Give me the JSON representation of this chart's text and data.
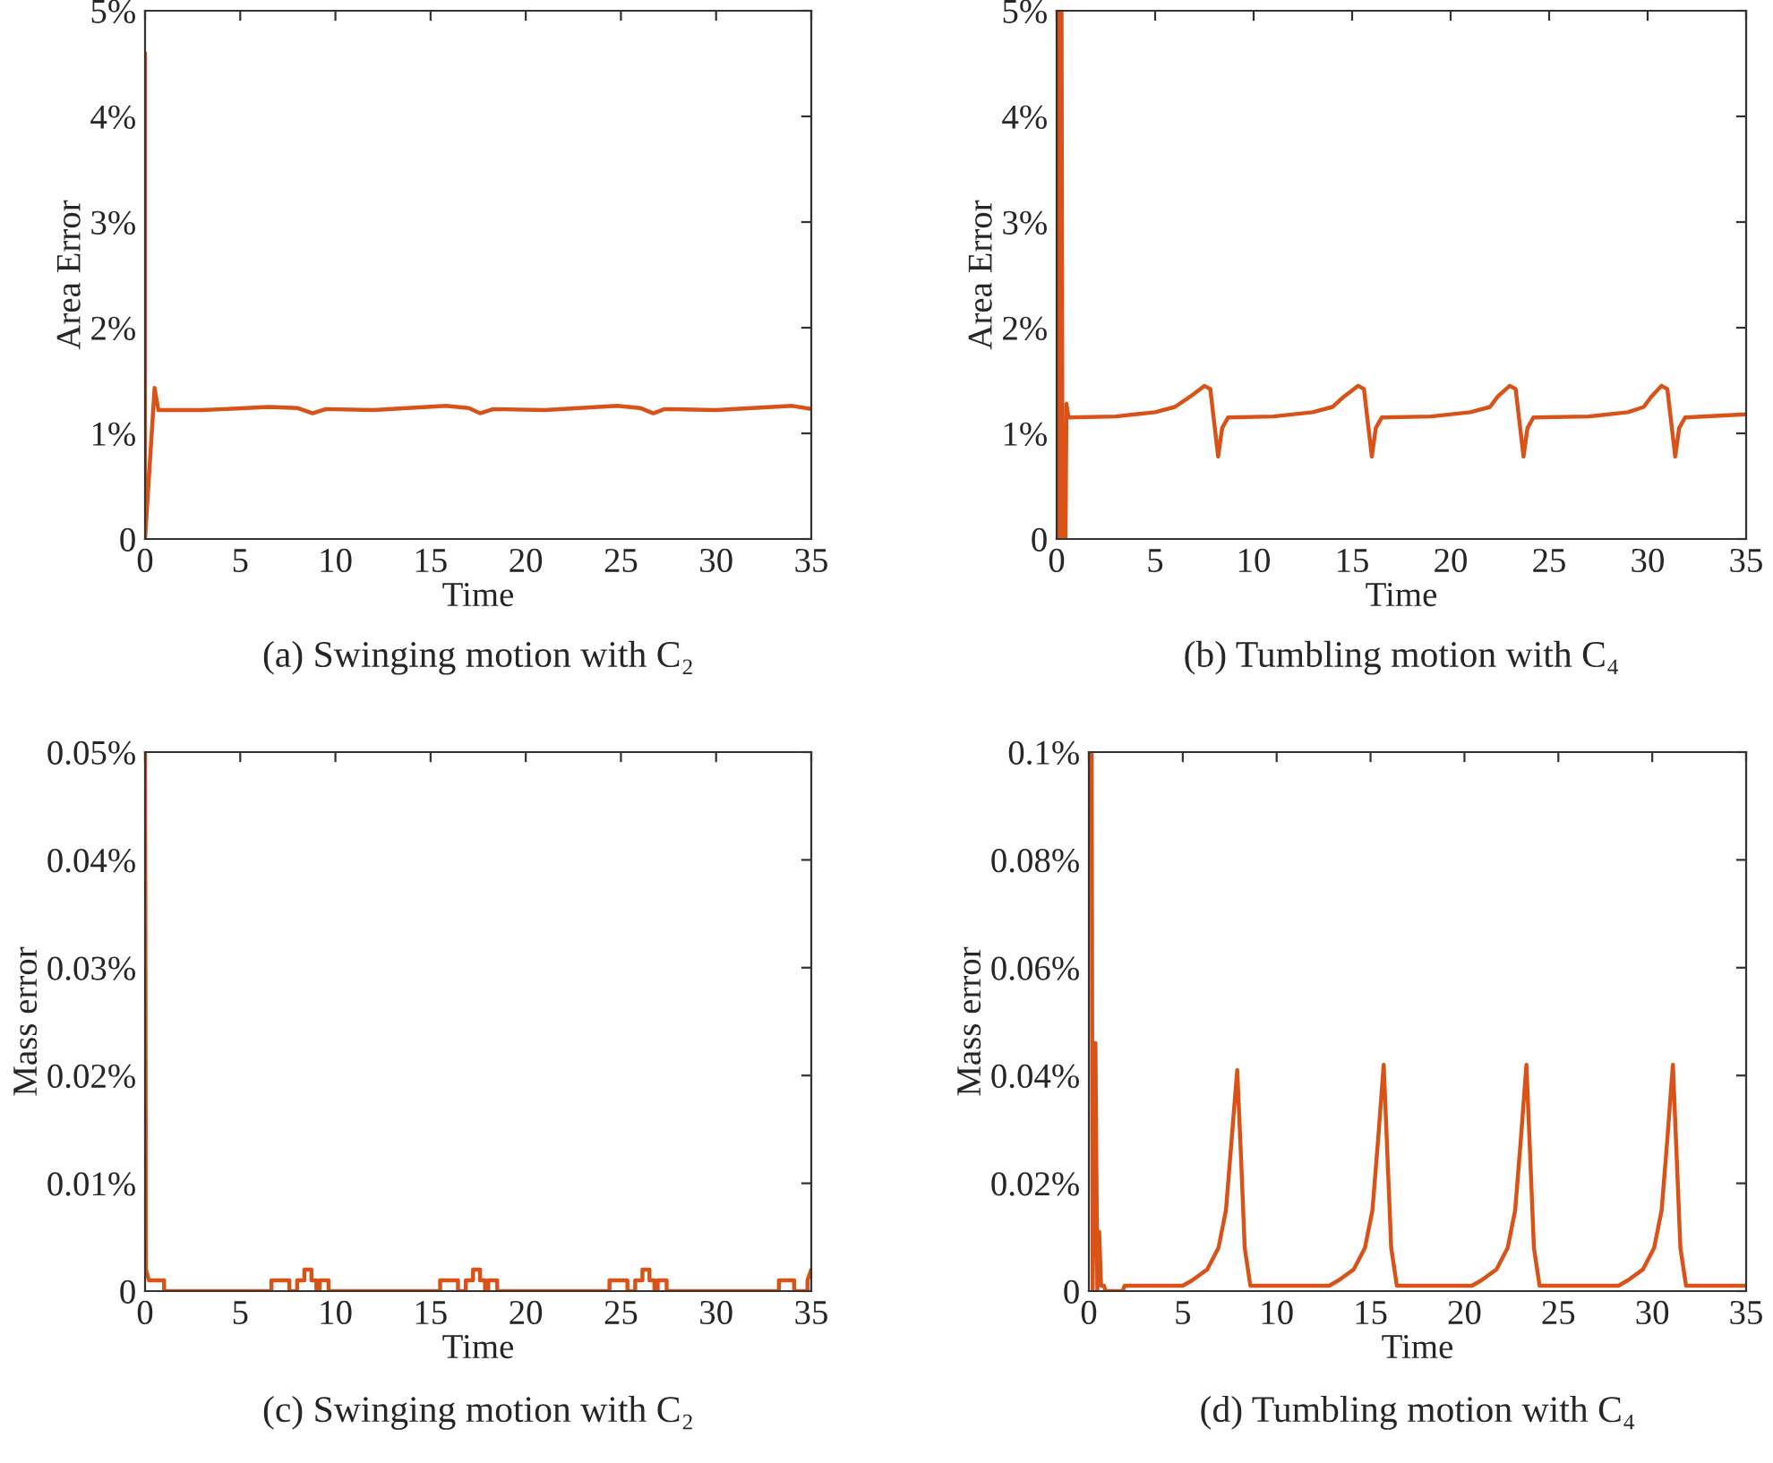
{
  "chart_data": [
    {
      "type": "line",
      "title": "(a) Swinging motion with C₂",
      "xlabel": "Time",
      "ylabel": "Area Error",
      "xlim": [
        0,
        35
      ],
      "ylim": [
        0,
        5
      ],
      "xticks": [
        0,
        5,
        10,
        15,
        20,
        25,
        30,
        35
      ],
      "yticks": [
        0,
        {
          "value": 1,
          "label": "1%"
        },
        {
          "value": 2,
          "label": "2%"
        },
        {
          "value": 3,
          "label": "3%"
        },
        {
          "value": 4,
          "label": "4%"
        },
        {
          "value": 5,
          "label": "5%"
        }
      ],
      "grid": false,
      "series": [
        {
          "color": "#d95319",
          "x": [
            0,
            0,
            0,
            0.5,
            0.7,
            3,
            6.5,
            8,
            8.8,
            9.5,
            12,
            15.8,
            17,
            17.6,
            18.3,
            21,
            24.8,
            26,
            26.7,
            27.3,
            30,
            34,
            35
          ],
          "values": [
            1.4,
            4.6,
            0,
            1.43,
            1.22,
            1.22,
            1.25,
            1.24,
            1.19,
            1.23,
            1.22,
            1.26,
            1.24,
            1.19,
            1.23,
            1.22,
            1.26,
            1.24,
            1.19,
            1.23,
            1.22,
            1.26,
            1.23
          ]
        }
      ]
    },
    {
      "type": "line",
      "title": "(b) Tumbling motion with C₄",
      "xlabel": "Time",
      "ylabel": "Area Error",
      "xlim": [
        0,
        35
      ],
      "ylim": [
        0,
        5
      ],
      "xticks": [
        0,
        5,
        10,
        15,
        20,
        25,
        30,
        35
      ],
      "yticks": [
        0,
        {
          "value": 1,
          "label": "1%"
        },
        {
          "value": 2,
          "label": "2%"
        },
        {
          "value": 3,
          "label": "3%"
        },
        {
          "value": 4,
          "label": "4%"
        },
        {
          "value": 5,
          "label": "5%"
        }
      ],
      "grid": false,
      "series": [
        {
          "color": "#d95319",
          "x": [
            0,
            0.05,
            0.1,
            0.15,
            0.25,
            0.3,
            0.45,
            0.5,
            0.6,
            3,
            5,
            6,
            6.8,
            7.5,
            7.8,
            8.0,
            8.2,
            8.4,
            8.7,
            11,
            13,
            14,
            14.6,
            15.3,
            15.6,
            15.8,
            16,
            16.2,
            16.5,
            19,
            21,
            22,
            22.4,
            23,
            23.3,
            23.5,
            23.7,
            23.9,
            24.2,
            27,
            29,
            29.8,
            30.2,
            30.7,
            31.0,
            31.2,
            31.4,
            31.6,
            31.9,
            35
          ],
          "values": [
            1.4,
            4.35,
            0,
            5,
            5,
            0,
            0,
            1.28,
            1.15,
            1.16,
            1.2,
            1.25,
            1.35,
            1.45,
            1.42,
            1.1,
            0.78,
            1.05,
            1.15,
            1.16,
            1.2,
            1.25,
            1.35,
            1.45,
            1.42,
            1.1,
            0.78,
            1.05,
            1.15,
            1.16,
            1.2,
            1.25,
            1.35,
            1.45,
            1.42,
            1.1,
            0.78,
            1.05,
            1.15,
            1.16,
            1.2,
            1.25,
            1.35,
            1.45,
            1.42,
            1.1,
            0.78,
            1.05,
            1.15,
            1.18
          ]
        }
      ]
    },
    {
      "type": "line",
      "title": "(c) Swinging motion with C₂",
      "xlabel": "Time",
      "ylabel": "Mass error",
      "xlim": [
        0,
        35
      ],
      "ylim": [
        0,
        0.05
      ],
      "xticks": [
        0,
        5,
        10,
        15,
        20,
        25,
        30,
        35
      ],
      "yticks": [
        0,
        {
          "value": 0.01,
          "label": "0.01%"
        },
        {
          "value": 0.02,
          "label": "0.02%"
        },
        {
          "value": 0.03,
          "label": "0.03%"
        },
        {
          "value": 0.04,
          "label": "0.04%"
        },
        {
          "value": 0.05,
          "label": "0.05%"
        }
      ],
      "grid": false,
      "series": [
        {
          "color": "#d95319",
          "x": [
            0,
            0.05,
            0.2,
            1.0,
            1.0,
            6.64,
            6.64,
            7.58,
            7.58,
            7.99,
            7.99,
            8.37,
            8.37,
            8.74,
            8.74,
            9.0,
            9.0,
            9.17,
            9.17,
            9.64,
            9.64,
            15.5,
            15.5,
            16.44,
            16.44,
            16.85,
            16.85,
            17.23,
            17.23,
            17.6,
            17.6,
            17.86,
            17.86,
            18.03,
            18.03,
            18.5,
            18.5,
            24.4,
            24.4,
            25.34,
            25.34,
            25.75,
            25.75,
            26.13,
            26.13,
            26.5,
            26.5,
            26.76,
            26.76,
            26.93,
            26.93,
            27.4,
            27.4,
            33.3,
            33.3,
            34.1,
            34.1,
            34.8,
            34.8,
            35
          ],
          "values": [
            0.05,
            0.002,
            0.001,
            0.001,
            0,
            0,
            0.001,
            0.001,
            0,
            0,
            0.001,
            0.001,
            0.002,
            0.002,
            0.001,
            0.001,
            0,
            0,
            0.001,
            0.001,
            0,
            0,
            0.001,
            0.001,
            0,
            0,
            0.001,
            0.001,
            0.002,
            0.002,
            0.001,
            0.001,
            0,
            0,
            0.001,
            0.001,
            0,
            0,
            0.001,
            0.001,
            0,
            0,
            0.001,
            0.001,
            0.002,
            0.002,
            0.001,
            0.001,
            0,
            0,
            0.001,
            0.001,
            0,
            0,
            0.001,
            0.001,
            0,
            0,
            0.001,
            0.002
          ]
        }
      ]
    },
    {
      "type": "line",
      "title": "(d) Tumbling motion with C₄",
      "xlabel": "Time",
      "ylabel": "Mass error",
      "xlim": [
        0,
        35
      ],
      "ylim": [
        0,
        0.1
      ],
      "xticks": [
        0,
        5,
        10,
        15,
        20,
        25,
        30,
        35
      ],
      "yticks": [
        0,
        {
          "value": 0.02,
          "label": "0.02%"
        },
        {
          "value": 0.04,
          "label": "0.04%"
        },
        {
          "value": 0.06,
          "label": "0.06%"
        },
        {
          "value": 0.08,
          "label": "0.08%"
        },
        {
          "value": 0.1,
          "label": "0.1%"
        }
      ],
      "grid": false,
      "series": [
        {
          "color": "#d95319",
          "x": [
            0,
            0.15,
            0.2,
            0.35,
            0.45,
            0.55,
            0.65,
            0.8,
            0.9,
            1.8,
            1.9,
            5.0,
            5.5,
            6.3,
            6.9,
            7.3,
            7.6,
            7.9,
            8.1,
            8.3,
            8.6,
            12.8,
            13.3,
            14.1,
            14.7,
            15.1,
            15.4,
            15.7,
            15.9,
            16.1,
            16.4,
            20.4,
            20.9,
            21.7,
            22.3,
            22.7,
            23.0,
            23.3,
            23.5,
            23.7,
            24.0,
            28.2,
            28.7,
            29.5,
            30.1,
            30.5,
            30.8,
            31.1,
            31.3,
            31.5,
            31.8,
            35
          ],
          "values": [
            0.1,
            0.1,
            0,
            0.046,
            0,
            0.011,
            0.001,
            0.001,
            0,
            0,
            0.001,
            0.001,
            0.002,
            0.004,
            0.008,
            0.015,
            0.028,
            0.041,
            0.025,
            0.008,
            0.001,
            0.001,
            0.002,
            0.004,
            0.008,
            0.015,
            0.028,
            0.042,
            0.025,
            0.008,
            0.001,
            0.001,
            0.002,
            0.004,
            0.008,
            0.015,
            0.028,
            0.042,
            0.025,
            0.008,
            0.001,
            0.001,
            0.002,
            0.004,
            0.008,
            0.015,
            0.028,
            0.042,
            0.025,
            0.008,
            0.001,
            0.001
          ]
        }
      ]
    }
  ]
}
